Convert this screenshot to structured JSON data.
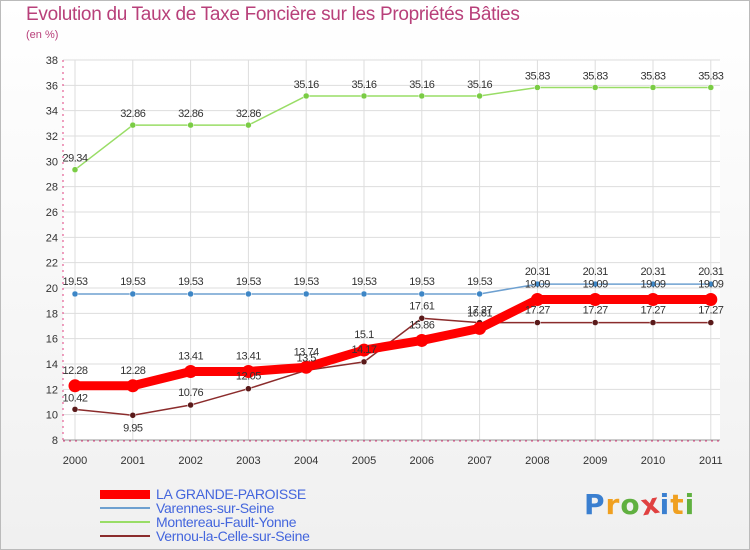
{
  "title": "Evolution du Taux de Taxe Foncière sur les Propriétés Bâties",
  "unit": "(en %)",
  "logo": [
    "P",
    "r",
    "o",
    "x",
    "i",
    "t",
    "i"
  ],
  "colors": {
    "title": "#b8407a",
    "grid": "#dddddd",
    "axis_dash": "#e04080",
    "legend_text": "#4466dd"
  },
  "chart_data": {
    "type": "line",
    "title": "Evolution du Taux de Taxe Foncière sur les Propriétés Bâties",
    "ylabel": "(en %)",
    "xlabel": "",
    "x": [
      "2000",
      "2001",
      "2002",
      "2003",
      "2004",
      "2005",
      "2006",
      "2007",
      "2008",
      "2009",
      "2010",
      "2011"
    ],
    "ylim": [
      8,
      38
    ],
    "yticks": [
      8,
      10,
      12,
      14,
      16,
      18,
      20,
      22,
      24,
      26,
      28,
      30,
      32,
      34,
      36,
      38
    ],
    "grid": true,
    "series": [
      {
        "name": "LA GRANDE-PAROISSE",
        "color": "#ff0000",
        "marker": "#ff0000",
        "width": 9,
        "values": [
          12.28,
          12.28,
          13.41,
          13.41,
          13.74,
          15.1,
          15.86,
          16.81,
          19.09,
          19.09,
          19.09,
          19.09
        ],
        "labels": [
          "12.28",
          "12.28",
          "13.41",
          "13.41",
          "13.74",
          "15.1",
          "15.86",
          "16.81",
          "19.09",
          "19.09",
          "19.09",
          "19.09"
        ]
      },
      {
        "name": "Varennes-sur-Seine",
        "color": "#6ea0d0",
        "marker": "#3d86c6",
        "width": 1.5,
        "values": [
          19.53,
          19.53,
          19.53,
          19.53,
          19.53,
          19.53,
          19.53,
          19.53,
          20.31,
          20.31,
          20.31,
          20.31
        ],
        "labels": [
          "19.53",
          "19.53",
          "19.53",
          "19.53",
          "19.53",
          "19.53",
          "19.53",
          "19.53",
          "20.31",
          "20.31",
          "20.31",
          "20.31"
        ]
      },
      {
        "name": "Montereau-Fault-Yonne",
        "color": "#99dd66",
        "marker": "#7acc44",
        "width": 1.5,
        "values": [
          29.34,
          32.86,
          32.86,
          32.86,
          35.16,
          35.16,
          35.16,
          35.16,
          35.83,
          35.83,
          35.83,
          35.83
        ],
        "labels": [
          "29.34",
          "32.86",
          "32.86",
          "32.86",
          "35.16",
          "35.16",
          "35.16",
          "35.16",
          "35.83",
          "35.83",
          "35.83",
          "35.83"
        ]
      },
      {
        "name": "Vernou-la-Celle-sur-Seine",
        "color": "#8b2c2c",
        "marker": "#5a1a1a",
        "width": 1.5,
        "values": [
          10.42,
          9.95,
          10.76,
          12.05,
          13.5,
          14.17,
          17.61,
          17.27,
          17.27,
          17.27,
          17.27,
          17.27
        ],
        "labels": [
          "10.42",
          "9.95",
          "10.76",
          "12.05",
          "13.5",
          "14.17",
          "17.61",
          "17.27",
          "17.27",
          "17.27",
          "17.27",
          "17.27"
        ]
      }
    ]
  }
}
